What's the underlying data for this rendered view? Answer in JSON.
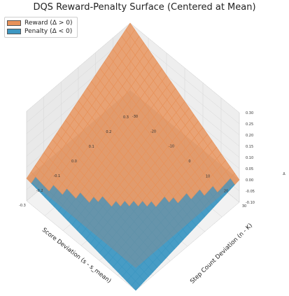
{
  "chart_data": {
    "type": "surface3d",
    "title": "DQS Reward-Penalty Surface (Centered at Mean)",
    "xlabel": "Score Deviation (s - s_mean)",
    "ylabel": "Step Count Deviation (n - K)",
    "zlabel": "",
    "xlim": [
      -0.3,
      0.3
    ],
    "ylim": [
      -30,
      30
    ],
    "zlim": [
      -0.1,
      0.3
    ],
    "x_ticks": [
      "-0.3",
      "-0.2",
      "-0.1",
      "0.0",
      "0.1",
      "0.2",
      "0.3"
    ],
    "y_ticks": [
      "-30",
      "-20",
      "-10",
      "0",
      "10",
      "20",
      "30"
    ],
    "z_ticks": [
      "-0.10",
      "-0.05",
      "0.00",
      "0.05",
      "0.10",
      "0.15",
      "0.20",
      "0.25",
      "0.30"
    ],
    "z_unit_label": "Δ",
    "surface": {
      "x_range": [
        -0.3,
        0.3
      ],
      "y_range": [
        -30,
        30
      ],
      "corner_values": {
        "x_max_y_min": 0.3,
        "x_max_y_max": 0.0,
        "x_min_y_min": 0.0,
        "x_min_y_max": -0.1
      },
      "center_value": 0.0
    },
    "legend": [
      {
        "label": "Reward (Δ > 0)",
        "color": "#e8925a"
      },
      {
        "label": "Penalty (Δ < 0)",
        "color": "#3d97c2"
      }
    ],
    "legend_position": "top-left",
    "zero_plane": true,
    "grid": true
  }
}
